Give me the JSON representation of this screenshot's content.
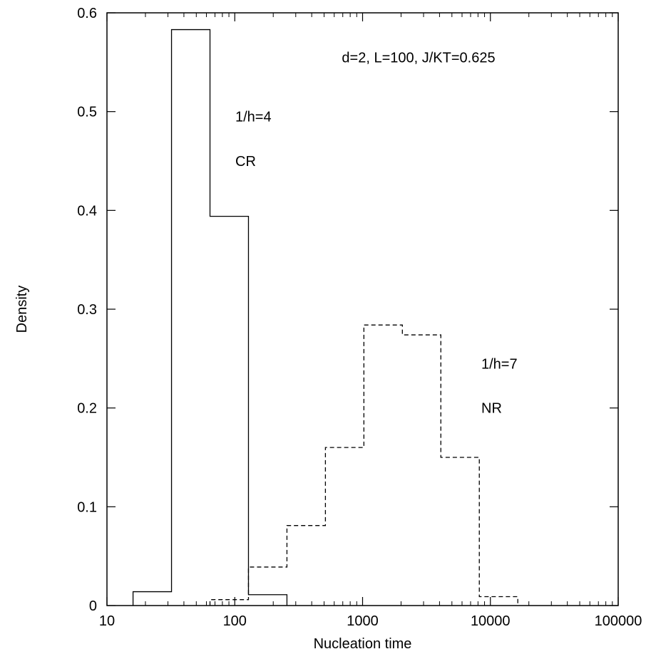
{
  "chart_data": {
    "type": "histogram-step",
    "xlabel": "Nucleation time",
    "ylabel": "Density",
    "xscale": "log",
    "xlim": [
      10,
      100000
    ],
    "ylim": [
      0,
      0.6
    ],
    "grid": false,
    "x_ticks": [
      {
        "value": 10,
        "label": "10"
      },
      {
        "value": 100,
        "label": "100"
      },
      {
        "value": 1000,
        "label": "1000"
      },
      {
        "value": 10000,
        "label": "10000"
      },
      {
        "value": 100000,
        "label": "100000"
      }
    ],
    "y_ticks": [
      {
        "value": 0,
        "label": "0"
      },
      {
        "value": 0.1,
        "label": "0.1"
      },
      {
        "value": 0.2,
        "label": "0.2"
      },
      {
        "value": 0.3,
        "label": "0.3"
      },
      {
        "value": 0.4,
        "label": "0.4"
      },
      {
        "value": 0.5,
        "label": "0.5"
      },
      {
        "value": 0.6,
        "label": "0.6"
      }
    ],
    "annotations": [
      {
        "id": "header",
        "text": "d=2, L=100, J/KT=0.625",
        "x": 1000,
        "y": 0.555
      },
      {
        "id": "cr-h",
        "text": "1/h=4",
        "x": 100,
        "y": 0.495
      },
      {
        "id": "cr-label",
        "text": "CR",
        "x": 100,
        "y": 0.45
      },
      {
        "id": "nr-h",
        "text": "1/h=7",
        "x": 10000,
        "y": 0.245
      },
      {
        "id": "nr-label",
        "text": "NR",
        "x": 10000,
        "y": 0.2
      }
    ],
    "series": [
      {
        "style": "solid",
        "color": "#000000",
        "bins": [
          {
            "x0": 16,
            "x1": 32,
            "density": 0.014
          },
          {
            "x0": 32,
            "x1": 64,
            "density": 0.583
          },
          {
            "x0": 64,
            "x1": 128,
            "density": 0.394
          },
          {
            "x0": 128,
            "x1": 256,
            "density": 0.011
          }
        ]
      },
      {
        "style": "dashed",
        "color": "#000000",
        "bins": [
          {
            "x0": 64,
            "x1": 128,
            "density": 0.006
          },
          {
            "x0": 128,
            "x1": 256,
            "density": 0.039
          },
          {
            "x0": 256,
            "x1": 512,
            "density": 0.081
          },
          {
            "x0": 512,
            "x1": 1024,
            "density": 0.16
          },
          {
            "x0": 1024,
            "x1": 2048,
            "density": 0.284
          },
          {
            "x0": 2048,
            "x1": 4096,
            "density": 0.274
          },
          {
            "x0": 4096,
            "x1": 8192,
            "density": 0.15
          },
          {
            "x0": 8192,
            "x1": 16384,
            "density": 0.009
          }
        ]
      }
    ]
  }
}
